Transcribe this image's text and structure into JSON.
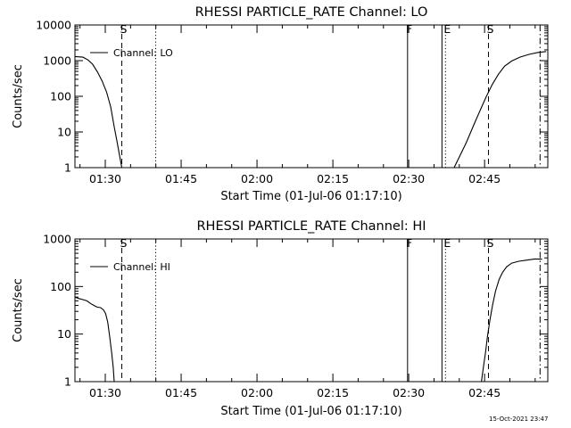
{
  "footer": {
    "timestamp": "15-Oct-2021 23:47"
  },
  "chart_data": [
    {
      "type": "line",
      "title": "RHESSI PARTICLE_RATE Channel: LO",
      "xlabel": "Start Time (01-Jul-06 01:17:10)",
      "ylabel": "Counts/sec",
      "xaxis": {
        "unit": "minutes after 01:17:10",
        "xlim": [
          6.83,
          100.33
        ],
        "ticks": [
          {
            "value": 12.83,
            "label": "01:30"
          },
          {
            "value": 27.83,
            "label": "01:45"
          },
          {
            "value": 42.83,
            "label": "02:00"
          },
          {
            "value": 57.83,
            "label": "02:15"
          },
          {
            "value": 72.83,
            "label": "02:30"
          },
          {
            "value": 87.83,
            "label": "02:45"
          }
        ]
      },
      "yaxis": {
        "scale": "log",
        "ylim": [
          1,
          10000
        ],
        "ticks": [
          {
            "value": 1,
            "label": "1"
          },
          {
            "value": 10,
            "label": "10"
          },
          {
            "value": 100,
            "label": "100"
          },
          {
            "value": 1000,
            "label": "1000"
          },
          {
            "value": 10000,
            "label": "10000"
          }
        ]
      },
      "legend": {
        "position": "top-left",
        "entries": [
          "Channel: LO"
        ]
      },
      "grid": false,
      "series": [
        {
          "name": "Channel: LO",
          "segments": [
            [
              [
                6.83,
                1300
              ],
              [
                8.4,
                1250
              ],
              [
                9.4,
                1050
              ],
              [
                10.3,
                800
              ],
              [
                11.3,
                480
              ],
              [
                12.2,
                270
              ],
              [
                13.1,
                130
              ],
              [
                13.9,
                50
              ],
              [
                14.6,
                14
              ],
              [
                15.2,
                5
              ],
              [
                15.7,
                2
              ],
              [
                16.1,
                1
              ]
            ],
            [
              [
                81.8,
                1
              ],
              [
                82.6,
                1.7
              ],
              [
                83.4,
                2.9
              ],
              [
                84.2,
                5
              ],
              [
                85.1,
                10
              ],
              [
                86.0,
                20
              ],
              [
                87.1,
                45
              ],
              [
                88.2,
                100
              ],
              [
                89.4,
                220
              ],
              [
                90.6,
                420
              ],
              [
                91.8,
                700
              ],
              [
                93.2,
                980
              ],
              [
                94.8,
                1250
              ],
              [
                96.6,
                1500
              ],
              [
                98.4,
                1700
              ],
              [
                100.0,
                1800
              ]
            ]
          ]
        }
      ],
      "markers": [
        {
          "label": "S",
          "style": "dashed",
          "x": 16.1
        },
        {
          "label": "",
          "style": "dotted",
          "x": 22.8
        },
        {
          "label": "F",
          "style": "solid",
          "x": 72.6
        },
        {
          "label": "",
          "style": "solid",
          "x": 79.4
        },
        {
          "label": "E",
          "style": "dotted",
          "x": 80.1
        },
        {
          "label": "S",
          "style": "dashed",
          "x": 88.6
        },
        {
          "label": "",
          "style": "dashdot",
          "x": 98.8
        }
      ]
    },
    {
      "type": "line",
      "title": "RHESSI PARTICLE_RATE Channel: HI",
      "xlabel": "Start Time (01-Jul-06 01:17:10)",
      "ylabel": "Counts/sec",
      "xaxis": {
        "unit": "minutes after 01:17:10",
        "xlim": [
          6.83,
          100.33
        ],
        "ticks": [
          {
            "value": 12.83,
            "label": "01:30"
          },
          {
            "value": 27.83,
            "label": "01:45"
          },
          {
            "value": 42.83,
            "label": "02:00"
          },
          {
            "value": 57.83,
            "label": "02:15"
          },
          {
            "value": 72.83,
            "label": "02:30"
          },
          {
            "value": 87.83,
            "label": "02:45"
          }
        ]
      },
      "yaxis": {
        "scale": "log",
        "ylim": [
          1,
          1000
        ],
        "ticks": [
          {
            "value": 1,
            "label": "1"
          },
          {
            "value": 10,
            "label": "10"
          },
          {
            "value": 100,
            "label": "100"
          },
          {
            "value": 1000,
            "label": "1000"
          }
        ]
      },
      "legend": {
        "position": "top-left",
        "entries": [
          "Channel: HI"
        ]
      },
      "grid": false,
      "series": [
        {
          "name": "Channel: HI",
          "segments": [
            [
              [
                6.83,
                60
              ],
              [
                7.6,
                56
              ],
              [
                8.4,
                53
              ],
              [
                9.2,
                50
              ],
              [
                9.9,
                44
              ],
              [
                10.6,
                40
              ],
              [
                11.2,
                37
              ],
              [
                11.9,
                36
              ],
              [
                12.5,
                32
              ],
              [
                12.9,
                27
              ],
              [
                13.3,
                18
              ],
              [
                13.7,
                9
              ],
              [
                14.1,
                4
              ],
              [
                14.4,
                2
              ],
              [
                14.6,
                1
              ]
            ],
            [
              [
                87.2,
                1
              ],
              [
                87.6,
                2
              ],
              [
                88.0,
                4
              ],
              [
                88.4,
                9
              ],
              [
                88.9,
                20
              ],
              [
                89.4,
                40
              ],
              [
                90.0,
                80
              ],
              [
                90.7,
                140
              ],
              [
                91.4,
                200
              ],
              [
                92.2,
                260
              ],
              [
                93.2,
                310
              ],
              [
                94.6,
                340
              ],
              [
                96.2,
                360
              ],
              [
                97.8,
                380
              ],
              [
                99.2,
                375
              ]
            ]
          ]
        }
      ],
      "markers": [
        {
          "label": "S",
          "style": "dashed",
          "x": 16.1
        },
        {
          "label": "",
          "style": "dotted",
          "x": 22.8
        },
        {
          "label": "F",
          "style": "solid",
          "x": 72.6
        },
        {
          "label": "",
          "style": "solid",
          "x": 79.4
        },
        {
          "label": "E",
          "style": "dotted",
          "x": 80.1
        },
        {
          "label": "S",
          "style": "dashed",
          "x": 88.6
        },
        {
          "label": "",
          "style": "dashdot",
          "x": 98.8
        }
      ]
    }
  ]
}
